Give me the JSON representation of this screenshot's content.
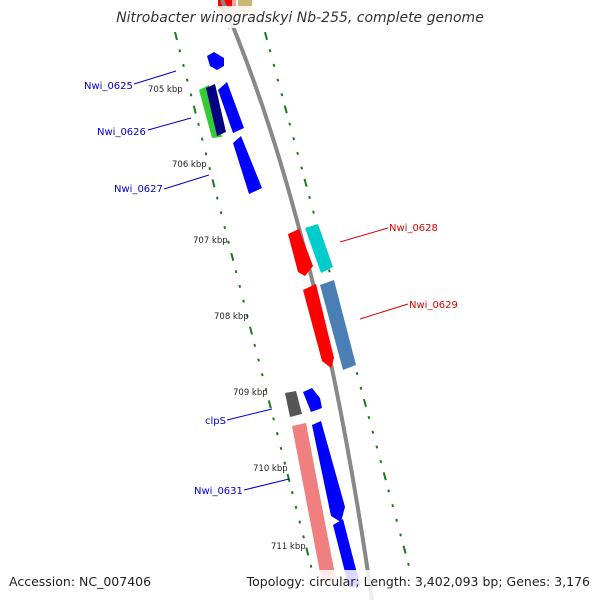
{
  "title": "Nitrobacter winogradskyi Nb-255, complete genome",
  "footer": {
    "accession": "Accession: NC_007406",
    "summary": "Topology: circular; Length: 3,402,093 bp; Genes: 3,176"
  },
  "colors": {
    "backbone": "#888888",
    "tick": "#1a7a1a",
    "label_forward": "#0000cc",
    "label_reverse": "#dd0000"
  },
  "ticks": [
    "705 kbp",
    "706 kbp",
    "707 kbp",
    "708 kbp",
    "709 kbp",
    "710 kbp",
    "711 kbp"
  ],
  "genes": [
    {
      "name": "Nwi_0625",
      "color": "#0000ff"
    },
    {
      "name": "Nwi_0626",
      "color": "#000080"
    },
    {
      "name": "Nwi_0627",
      "color": "#0000ff"
    },
    {
      "name": "Nwi_0628",
      "color": "#00cccc"
    },
    {
      "name": "Nwi_0629",
      "color": "#4a7fb5"
    },
    {
      "name": "clpS",
      "color": "#555555"
    },
    {
      "name": "Nwi_0631",
      "color": "#f08080"
    }
  ]
}
